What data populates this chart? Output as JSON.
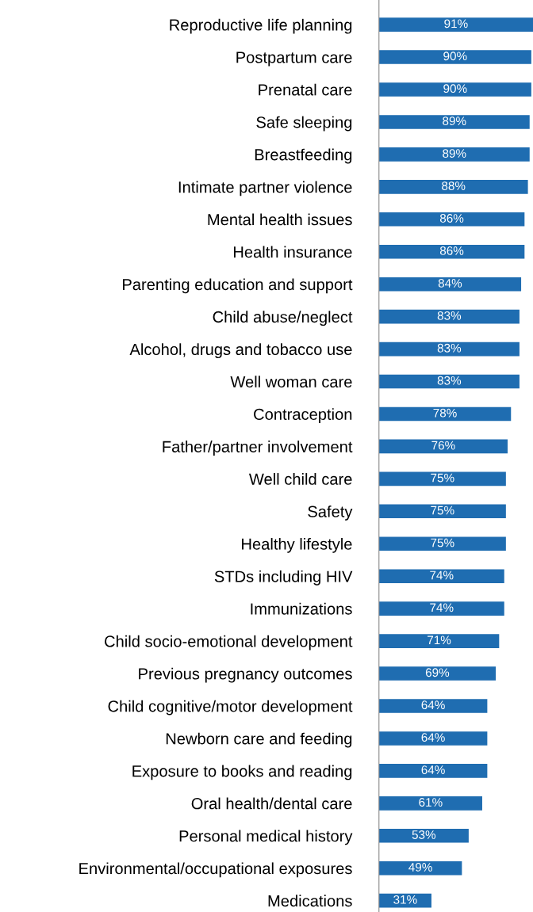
{
  "chart_data": {
    "type": "bar",
    "orientation": "horizontal",
    "categories": [
      "Reproductive life planning",
      "Postpartum care",
      "Prenatal care",
      "Safe sleeping",
      "Breastfeeding",
      "Intimate partner violence",
      "Mental health issues",
      "Health insurance",
      "Parenting education and support",
      "Child abuse/neglect",
      "Alcohol, drugs and tobacco use",
      "Well woman care",
      "Contraception",
      "Father/partner involvement",
      "Well child care",
      "Safety",
      "Healthy lifestyle",
      "STDs including HIV",
      "Immunizations",
      "Child socio-emotional development",
      "Previous pregnancy outcomes",
      "Child cognitive/motor development",
      "Newborn care and feeding",
      "Exposure to books and reading",
      "Oral health/dental care",
      "Personal medical history",
      "Environmental/occupational exposures",
      "Medications"
    ],
    "values": [
      91,
      90,
      90,
      89,
      89,
      88,
      86,
      86,
      84,
      83,
      83,
      83,
      78,
      76,
      75,
      75,
      75,
      74,
      74,
      71,
      69,
      64,
      64,
      64,
      61,
      53,
      49,
      31
    ],
    "value_labels": [
      "91%",
      "90%",
      "90%",
      "89%",
      "89%",
      "88%",
      "86%",
      "86%",
      "84%",
      "83%",
      "83%",
      "83%",
      "78%",
      "76%",
      "75%",
      "75%",
      "75%",
      "74%",
      "74%",
      "71%",
      "69%",
      "64%",
      "64%",
      "64%",
      "61%",
      "53%",
      "49%",
      "31%"
    ],
    "color": "#1f6db1",
    "xlim": [
      0,
      91
    ],
    "tick_labels": "y",
    "grid": false,
    "legend": false
  }
}
